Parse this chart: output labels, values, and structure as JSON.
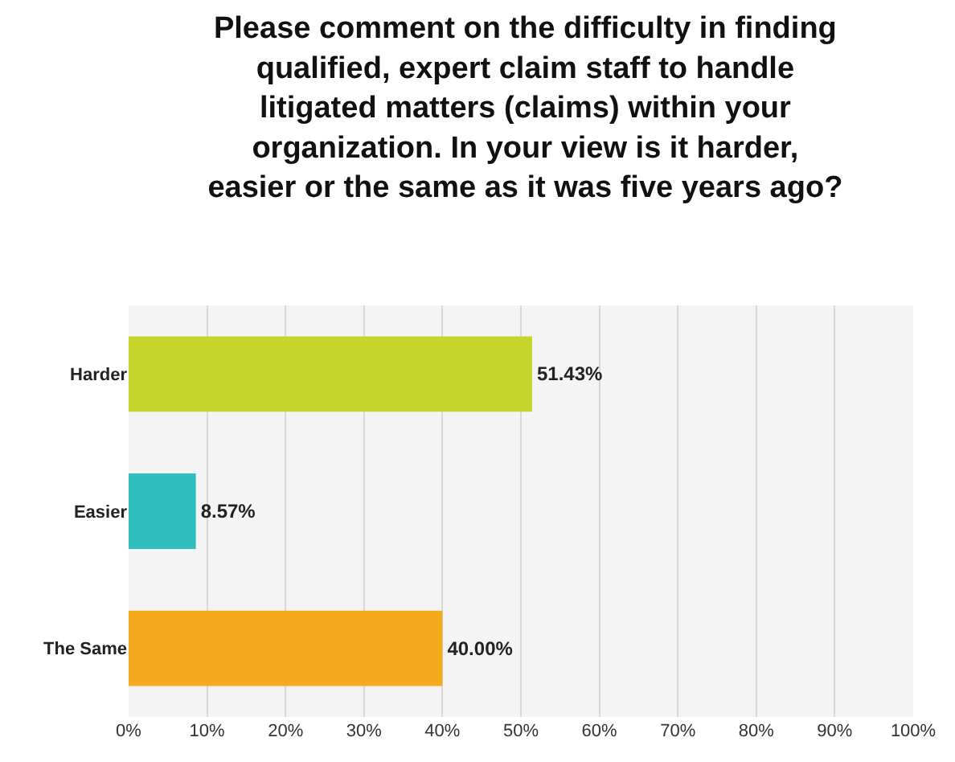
{
  "chart_data": {
    "type": "bar",
    "orientation": "horizontal",
    "title": "Please comment on the difficulty in finding qualified, expert claim staff to handle litigated matters (claims) within your organization. In your view is it harder, easier or the same as it was five years ago?",
    "categories": [
      "Harder",
      "Easier",
      "The Same"
    ],
    "values": [
      51.43,
      8.57,
      40.0
    ],
    "colors": [
      "#c5d52a",
      "#2fbfbf",
      "#f5a91c"
    ],
    "value_labels": [
      "51.43%",
      "8.57%",
      "40.00%"
    ],
    "xlim": [
      0,
      100
    ],
    "xticks": [
      {
        "value": 0,
        "label": "0%"
      },
      {
        "value": 10,
        "label": "10%"
      },
      {
        "value": 20,
        "label": "20%"
      },
      {
        "value": 30,
        "label": "30%"
      },
      {
        "value": 40,
        "label": "40%"
      },
      {
        "value": 50,
        "label": "50%"
      },
      {
        "value": 60,
        "label": "60%"
      },
      {
        "value": 70,
        "label": "70%"
      },
      {
        "value": 80,
        "label": "80%"
      },
      {
        "value": 90,
        "label": "90%"
      },
      {
        "value": 100,
        "label": "100%"
      }
    ],
    "grid": "x"
  }
}
